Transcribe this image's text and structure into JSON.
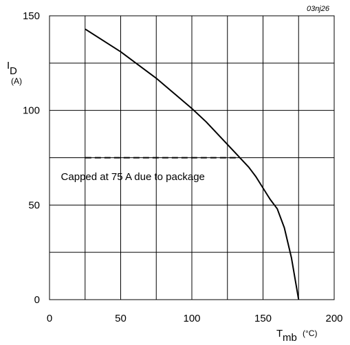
{
  "chart_data": {
    "type": "line",
    "figure_id": "03nj26",
    "xlim": [
      0,
      200
    ],
    "ylim": [
      0,
      150
    ],
    "x_ticks": [
      "0",
      "50",
      "100",
      "150",
      "200"
    ],
    "y_ticks": [
      "0",
      "50",
      "100",
      "150"
    ],
    "grid": true,
    "ylabel": {
      "main": "I",
      "sub": "D",
      "unit": "(A)"
    },
    "xlabel": {
      "main": "T",
      "sub": "mb",
      "unit": "(°C)"
    },
    "series": [
      {
        "style": "solid",
        "x": [
          25,
          50,
          75,
          100,
          110,
          120,
          130,
          135,
          140,
          145,
          150,
          155,
          160,
          165,
          170,
          175
        ],
        "y": [
          143,
          131,
          117,
          101,
          94,
          86,
          78,
          74,
          70,
          65,
          59,
          53,
          48,
          38,
          22,
          0
        ]
      },
      {
        "style": "dashed",
        "x": [
          25,
          134
        ],
        "y": [
          75,
          75
        ]
      }
    ],
    "annotations": [
      {
        "text": "Capped at 75 A due to package",
        "x": 8,
        "y": 65
      }
    ]
  }
}
